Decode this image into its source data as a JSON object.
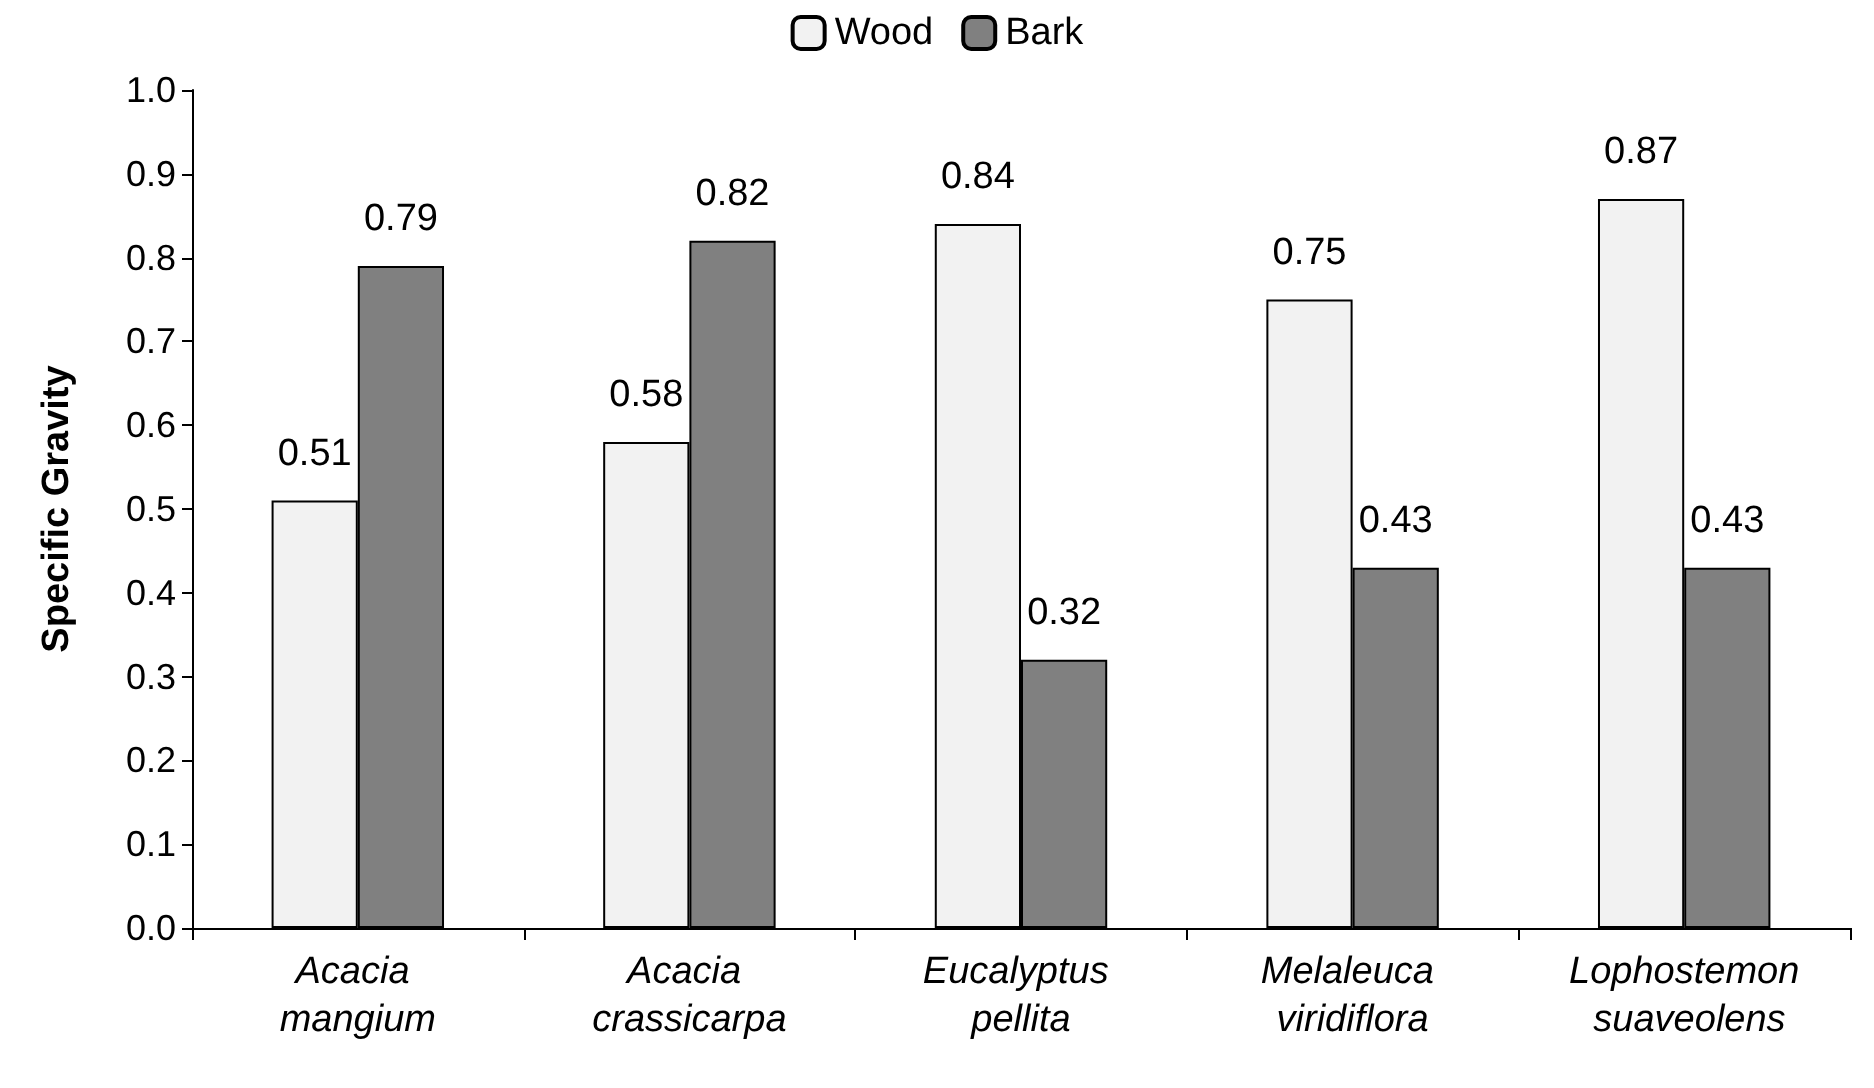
{
  "chart_data": {
    "type": "bar",
    "ylabel": "Specific Gravity",
    "categories": [
      "Acacia mangium",
      "Acacia crassicarpa",
      "Eucalyptus pellita",
      "Melaleuca viridiflora",
      "Lophostemon suaveolens"
    ],
    "series": [
      {
        "name": "Wood",
        "color": "#f2f2f2",
        "values": [
          0.51,
          0.58,
          0.84,
          0.75,
          0.87
        ]
      },
      {
        "name": "Bark",
        "color": "#808080",
        "values": [
          0.79,
          0.82,
          0.32,
          0.43,
          0.43
        ]
      }
    ],
    "ylim": [
      0,
      1
    ],
    "yticks": [
      {
        "value": 0,
        "label": "0.0"
      },
      {
        "value": 0.1,
        "label": "0.1"
      },
      {
        "value": 0.2,
        "label": "0.2"
      },
      {
        "value": 0.3,
        "label": "0.3"
      },
      {
        "value": 0.4,
        "label": "0.4"
      },
      {
        "value": 0.5,
        "label": "0.5"
      },
      {
        "value": 0.6,
        "label": "0.6"
      },
      {
        "value": 0.7,
        "label": "0.7"
      },
      {
        "value": 0.8,
        "label": "0.8"
      },
      {
        "value": 0.9,
        "label": "0.9"
      },
      {
        "value": 1,
        "label": "1.0"
      }
    ],
    "grid": false,
    "legend": "top",
    "data_labels": true
  }
}
